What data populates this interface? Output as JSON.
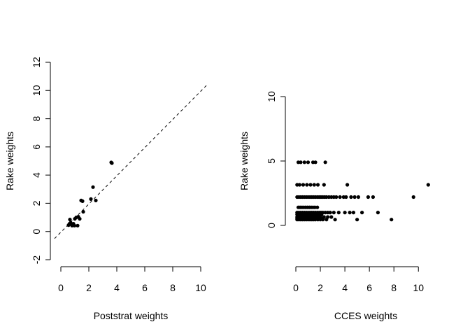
{
  "chart_data": [
    {
      "type": "scatter",
      "xlabel": "Poststrat weights",
      "ylabel": "Rake weights",
      "xlim": [
        0,
        10
      ],
      "ylim": [
        -2,
        12
      ],
      "xticks": [
        "0",
        "2",
        "4",
        "6",
        "8",
        "10"
      ],
      "yticks": [
        "-2",
        "0",
        "2",
        "4",
        "6",
        "8",
        "10",
        "12"
      ],
      "reference_line": {
        "style": "dashed",
        "intercept": -0.05,
        "slope": 1.0
      },
      "points": [
        [
          0.55,
          0.45
        ],
        [
          0.62,
          0.55
        ],
        [
          0.7,
          0.62
        ],
        [
          0.65,
          0.85
        ],
        [
          0.8,
          0.42
        ],
        [
          0.9,
          0.55
        ],
        [
          0.98,
          0.42
        ],
        [
          1.0,
          0.9
        ],
        [
          1.1,
          1.0
        ],
        [
          1.2,
          0.42
        ],
        [
          1.25,
          1.05
        ],
        [
          1.35,
          0.9
        ],
        [
          1.45,
          2.2
        ],
        [
          1.55,
          2.15
        ],
        [
          1.6,
          1.4
        ],
        [
          2.15,
          2.3
        ],
        [
          2.3,
          3.15
        ],
        [
          2.5,
          2.2
        ],
        [
          3.6,
          4.9
        ],
        [
          3.65,
          4.85
        ]
      ]
    },
    {
      "type": "scatter",
      "xlabel": "CCES weights",
      "ylabel": "Rake weights",
      "xlim": [
        0,
        10.5
      ],
      "ylim": [
        0,
        10
      ],
      "xticks": [
        "0",
        "2",
        "4",
        "6",
        "8",
        "10"
      ],
      "yticks": [
        "0",
        "5",
        "10"
      ],
      "levels": [
        0.45,
        0.55,
        0.65,
        0.85,
        1.0,
        1.4,
        2.2,
        3.15,
        4.9
      ],
      "points": [
        [
          0.2,
          4.9
        ],
        [
          0.4,
          4.9
        ],
        [
          0.7,
          4.9
        ],
        [
          1.0,
          4.9
        ],
        [
          1.4,
          4.9
        ],
        [
          1.6,
          4.9
        ],
        [
          2.4,
          4.9
        ],
        [
          0.1,
          3.15
        ],
        [
          0.3,
          3.15
        ],
        [
          0.6,
          3.15
        ],
        [
          0.9,
          3.15
        ],
        [
          1.2,
          3.15
        ],
        [
          1.5,
          3.15
        ],
        [
          1.8,
          3.15
        ],
        [
          2.3,
          3.15
        ],
        [
          4.2,
          3.15
        ],
        [
          10.8,
          3.15
        ],
        [
          0.1,
          2.2
        ],
        [
          0.25,
          2.2
        ],
        [
          0.4,
          2.2
        ],
        [
          0.55,
          2.2
        ],
        [
          0.7,
          2.2
        ],
        [
          0.85,
          2.2
        ],
        [
          1.0,
          2.2
        ],
        [
          1.15,
          2.2
        ],
        [
          1.3,
          2.2
        ],
        [
          1.45,
          2.2
        ],
        [
          1.6,
          2.2
        ],
        [
          1.75,
          2.2
        ],
        [
          1.9,
          2.2
        ],
        [
          2.05,
          2.2
        ],
        [
          2.2,
          2.2
        ],
        [
          2.35,
          2.2
        ],
        [
          2.5,
          2.2
        ],
        [
          2.7,
          2.2
        ],
        [
          2.9,
          2.2
        ],
        [
          3.1,
          2.2
        ],
        [
          3.3,
          2.2
        ],
        [
          3.6,
          2.2
        ],
        [
          3.9,
          2.2
        ],
        [
          4.1,
          2.2
        ],
        [
          4.5,
          2.2
        ],
        [
          4.8,
          2.2
        ],
        [
          5.1,
          2.2
        ],
        [
          5.9,
          2.2
        ],
        [
          6.3,
          2.2
        ],
        [
          9.6,
          2.2
        ],
        [
          0.2,
          1.4
        ],
        [
          0.35,
          1.4
        ],
        [
          0.5,
          1.4
        ],
        [
          0.65,
          1.4
        ],
        [
          0.8,
          1.4
        ],
        [
          0.95,
          1.4
        ],
        [
          1.1,
          1.4
        ],
        [
          1.25,
          1.4
        ],
        [
          1.4,
          1.4
        ],
        [
          1.55,
          1.4
        ],
        [
          1.75,
          1.4
        ],
        [
          0.1,
          1.0
        ],
        [
          0.25,
          1.0
        ],
        [
          0.4,
          1.0
        ],
        [
          0.55,
          1.0
        ],
        [
          0.7,
          1.0
        ],
        [
          0.85,
          1.0
        ],
        [
          1.0,
          1.0
        ],
        [
          1.15,
          1.0
        ],
        [
          1.3,
          1.0
        ],
        [
          1.45,
          1.0
        ],
        [
          1.6,
          1.0
        ],
        [
          1.75,
          1.0
        ],
        [
          1.9,
          1.0
        ],
        [
          2.05,
          1.0
        ],
        [
          2.2,
          1.0
        ],
        [
          2.4,
          1.0
        ],
        [
          2.6,
          1.0
        ],
        [
          2.8,
          1.0
        ],
        [
          3.1,
          1.0
        ],
        [
          3.5,
          1.0
        ],
        [
          4.0,
          1.0
        ],
        [
          4.4,
          1.0
        ],
        [
          4.7,
          1.0
        ],
        [
          5.4,
          1.0
        ],
        [
          6.7,
          1.0
        ],
        [
          0.1,
          0.85
        ],
        [
          0.25,
          0.85
        ],
        [
          0.4,
          0.85
        ],
        [
          0.55,
          0.85
        ],
        [
          0.7,
          0.85
        ],
        [
          0.85,
          0.85
        ],
        [
          1.0,
          0.85
        ],
        [
          1.15,
          0.85
        ],
        [
          1.3,
          0.85
        ],
        [
          1.5,
          0.85
        ],
        [
          1.7,
          0.85
        ],
        [
          1.9,
          0.85
        ],
        [
          2.1,
          0.85
        ],
        [
          0.1,
          0.65
        ],
        [
          0.25,
          0.65
        ],
        [
          0.4,
          0.65
        ],
        [
          0.55,
          0.65
        ],
        [
          0.7,
          0.65
        ],
        [
          0.85,
          0.65
        ],
        [
          1.0,
          0.65
        ],
        [
          1.15,
          0.65
        ],
        [
          1.3,
          0.65
        ],
        [
          1.45,
          0.65
        ],
        [
          1.6,
          0.65
        ],
        [
          1.8,
          0.65
        ],
        [
          2.0,
          0.65
        ],
        [
          2.3,
          0.65
        ],
        [
          2.6,
          0.65
        ],
        [
          2.9,
          0.65
        ],
        [
          0.1,
          0.55
        ],
        [
          0.25,
          0.55
        ],
        [
          0.4,
          0.55
        ],
        [
          0.55,
          0.55
        ],
        [
          0.7,
          0.55
        ],
        [
          0.85,
          0.55
        ],
        [
          1.0,
          0.55
        ],
        [
          1.15,
          0.55
        ],
        [
          1.3,
          0.55
        ],
        [
          1.5,
          0.55
        ],
        [
          1.7,
          0.55
        ],
        [
          1.9,
          0.55
        ],
        [
          2.2,
          0.55
        ],
        [
          0.1,
          0.45
        ],
        [
          0.25,
          0.45
        ],
        [
          0.4,
          0.45
        ],
        [
          0.55,
          0.45
        ],
        [
          0.7,
          0.45
        ],
        [
          0.85,
          0.45
        ],
        [
          1.0,
          0.45
        ],
        [
          1.15,
          0.45
        ],
        [
          1.3,
          0.45
        ],
        [
          1.45,
          0.45
        ],
        [
          1.6,
          0.45
        ],
        [
          1.8,
          0.45
        ],
        [
          2.0,
          0.45
        ],
        [
          2.2,
          0.45
        ],
        [
          2.5,
          0.45
        ],
        [
          3.2,
          0.45
        ],
        [
          5.0,
          0.45
        ],
        [
          7.8,
          0.45
        ]
      ]
    }
  ]
}
